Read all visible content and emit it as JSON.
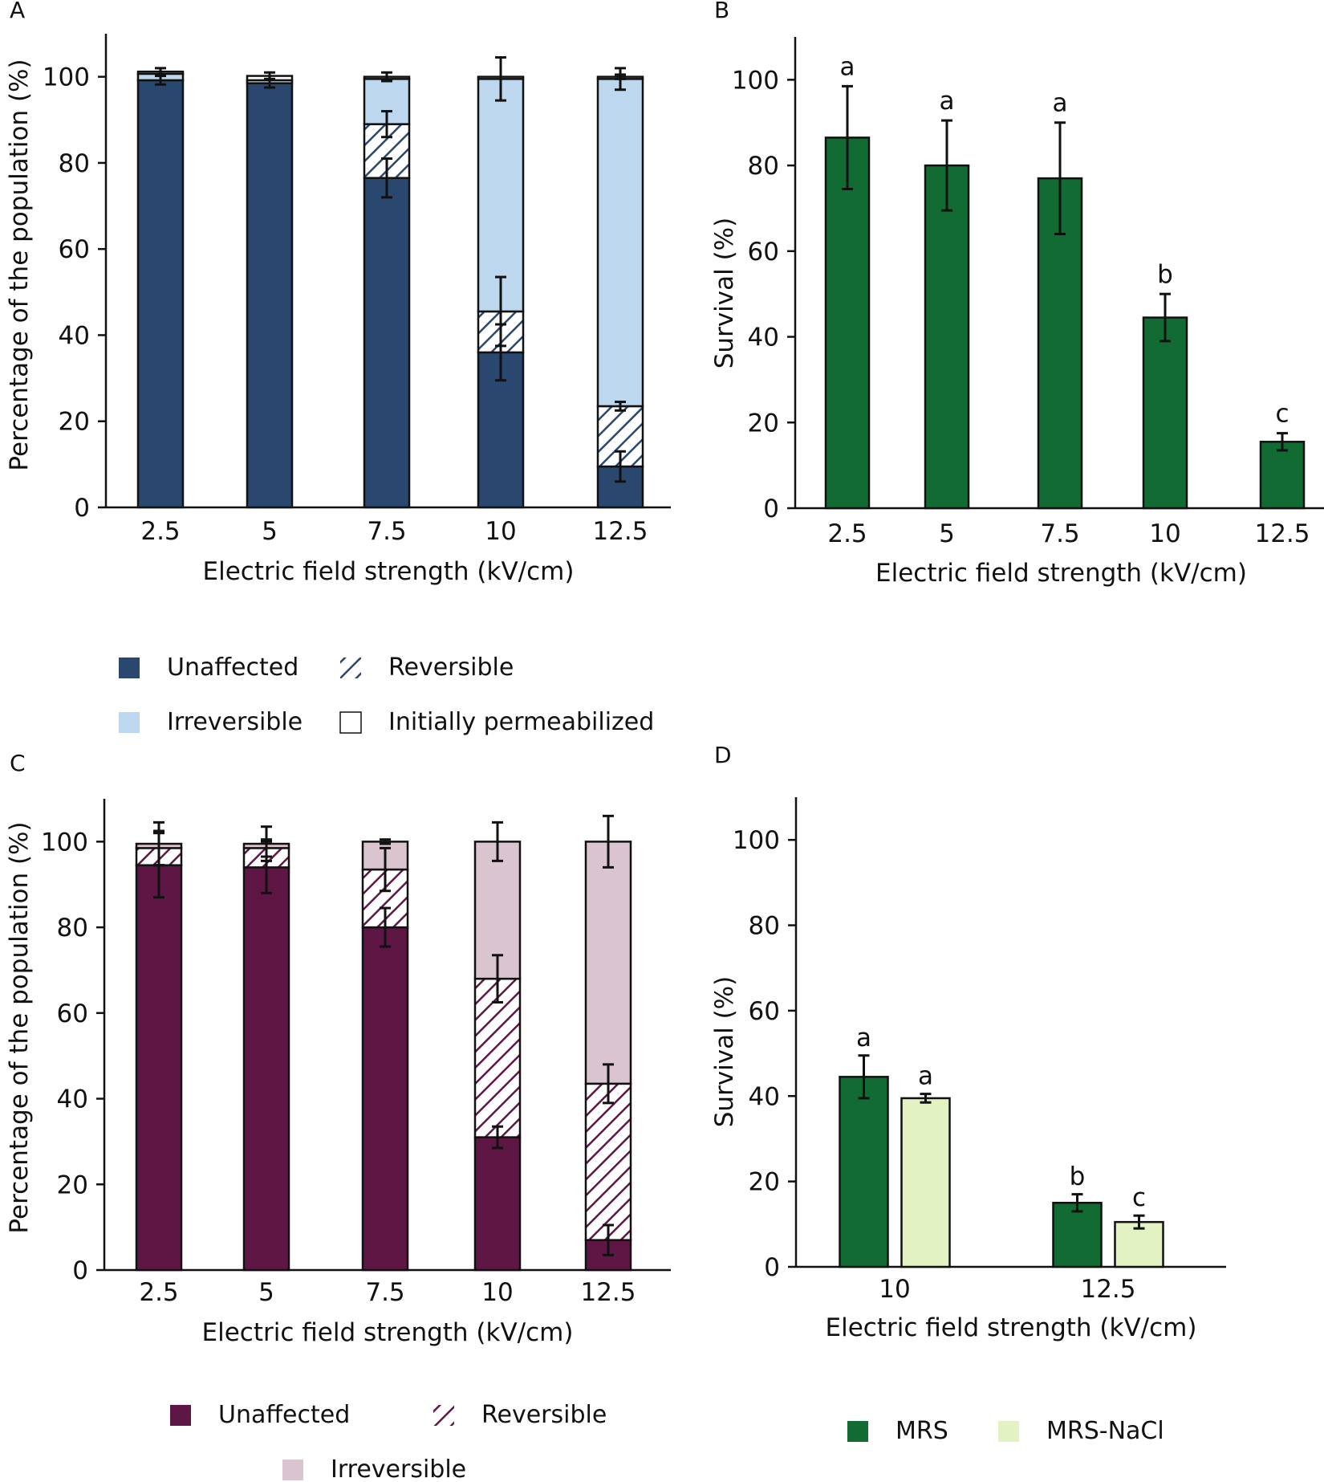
{
  "colors": {
    "navy": "#29476f",
    "lightblue": "#bdd7ee",
    "white": "#ffffff",
    "maroon": "#5e1744",
    "mauve": "#d9c4d0",
    "darkgreen": "#136b34",
    "palegreen": "#e2f2c3",
    "axis": "#111111"
  },
  "chart_data": [
    {
      "panel": "A",
      "type": "bar",
      "stacked": true,
      "categories": [
        "2.5",
        "5",
        "7.5",
        "10",
        "12.5"
      ],
      "xlabel": "Electric field strength (kV/cm)",
      "ylabel": "Percentage of the population (%)",
      "ylim": [
        0,
        110
      ],
      "yticks": [
        0,
        20,
        40,
        60,
        80,
        100
      ],
      "series": [
        {
          "name": "Unaffected",
          "values": [
            99.2,
            98.5,
            76.5,
            36.0,
            9.5
          ],
          "errors": [
            1.0,
            1.0,
            4.5,
            6.5,
            3.5
          ],
          "color": "navy",
          "pattern": "solid"
        },
        {
          "name": "Reversible",
          "values": [
            0,
            0,
            12.5,
            9.5,
            14.0
          ],
          "errors": [
            0,
            0,
            3.0,
            8.0,
            1.0
          ],
          "color": "navy",
          "pattern": "hatch"
        },
        {
          "name": "Irreversible",
          "values": [
            1.5,
            0.7,
            10.5,
            54.0,
            76.0
          ],
          "errors": [
            0,
            0,
            0,
            5.0,
            2.5
          ],
          "color": "lightblue",
          "pattern": "solid"
        },
        {
          "name": "Initially permeabilized",
          "values": [
            0.5,
            1.0,
            0.5,
            0.5,
            0.5
          ],
          "errors": [
            0.8,
            0.8,
            1.0,
            0,
            0.5
          ],
          "color": "white",
          "pattern": "solid"
        }
      ],
      "legend": [
        "Unaffected",
        "Reversible",
        "Irreversible",
        "Initially permeabilized"
      ]
    },
    {
      "panel": "B",
      "type": "bar",
      "categories": [
        "2.5",
        "5",
        "7.5",
        "10",
        "12.5"
      ],
      "xlabel": "Electric field strength (kV/cm)",
      "ylabel": "Survival (%)",
      "ylim": [
        0,
        110
      ],
      "yticks": [
        0,
        20,
        40,
        60,
        80,
        100
      ],
      "series": [
        {
          "name": "Survival",
          "values": [
            86.5,
            80.0,
            77.0,
            44.5,
            15.5
          ],
          "errors": [
            12.0,
            10.5,
            13.0,
            5.5,
            2.0
          ],
          "color": "darkgreen"
        }
      ],
      "annotations": [
        "a",
        "a",
        "a",
        "b",
        "c"
      ]
    },
    {
      "panel": "C",
      "type": "bar",
      "stacked": true,
      "categories": [
        "2.5",
        "5",
        "7.5",
        "10",
        "12.5"
      ],
      "xlabel": "Electric field strength (kV/cm)",
      "ylabel": "Percentage of the population (%)",
      "ylim": [
        0,
        110
      ],
      "yticks": [
        0,
        20,
        40,
        60,
        80,
        100
      ],
      "series": [
        {
          "name": "Unaffected",
          "values": [
            94.5,
            94.0,
            80.0,
            31.0,
            7.0
          ],
          "errors": [
            7.5,
            6.0,
            4.5,
            2.5,
            3.5
          ],
          "color": "maroon",
          "pattern": "solid"
        },
        {
          "name": "Reversible",
          "values": [
            4.0,
            4.5,
            13.5,
            37.0,
            36.5
          ],
          "errors": [
            4.0,
            2.0,
            5.0,
            5.5,
            4.5
          ],
          "color": "maroon",
          "pattern": "hatch"
        },
        {
          "name": "Irreversible",
          "values": [
            1.0,
            1.0,
            6.5,
            32.0,
            56.5
          ],
          "errors": [
            5.0,
            4.0,
            0.5,
            4.5,
            6.0
          ],
          "color": "mauve",
          "pattern": "solid"
        }
      ],
      "legend": [
        "Unaffected",
        "Reversible",
        "Irreversible"
      ]
    },
    {
      "panel": "D",
      "type": "bar",
      "categories": [
        "10",
        "12.5"
      ],
      "xlabel": "Electric field strength (kV/cm)",
      "ylabel": "Survival (%)",
      "ylim": [
        0,
        110
      ],
      "yticks": [
        0,
        20,
        40,
        60,
        80,
        100
      ],
      "series": [
        {
          "name": "MRS",
          "values": [
            44.5,
            15.0
          ],
          "errors": [
            5.0,
            2.0
          ],
          "color": "darkgreen"
        },
        {
          "name": "MRS-NaCl",
          "values": [
            39.5,
            10.5
          ],
          "errors": [
            1.0,
            1.5
          ],
          "color": "palegreen"
        }
      ],
      "annotations": [
        [
          "a",
          "a"
        ],
        [
          "b",
          "c"
        ]
      ],
      "legend": [
        "MRS",
        "MRS-NaCl"
      ]
    }
  ]
}
